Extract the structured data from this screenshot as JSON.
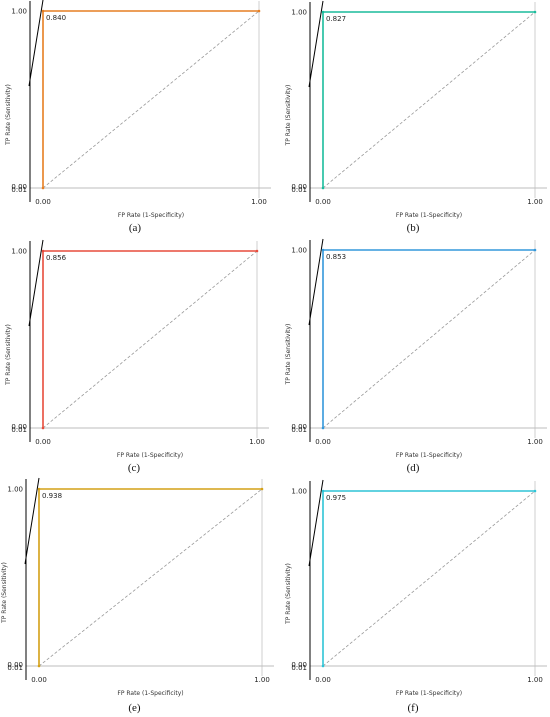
{
  "axis_labels": {
    "x": "FP Rate (1-Specificity)",
    "y": "TP Rate (Sensitivity)"
  },
  "tick_labels": {
    "x_min": "0.00",
    "x_max": "1.00",
    "y_max": "1.00",
    "y_min_a": "0.00",
    "y_min_b": "0.01"
  },
  "chart_data": [
    {
      "type": "line",
      "caption": "(a)",
      "auc_label": "0.840",
      "color": "#e67e22",
      "points": [
        [
          0,
          0
        ],
        [
          0,
          1
        ],
        [
          1,
          1
        ]
      ],
      "diagonal": [
        [
          0,
          0
        ],
        [
          1,
          1
        ]
      ],
      "xlabel": "FP Rate (1-Specificity)",
      "ylabel": "TP Rate (Sensitivity)",
      "xlim": [
        0,
        1
      ],
      "ylim": [
        0,
        1
      ]
    },
    {
      "type": "line",
      "caption": "(b)",
      "auc_label": "0.827",
      "color": "#1abc9c",
      "points": [
        [
          0,
          0
        ],
        [
          0,
          1
        ],
        [
          1,
          1
        ]
      ],
      "diagonal": [
        [
          0,
          0
        ],
        [
          1,
          1
        ]
      ],
      "xlabel": "FP Rate (1-Specificity)",
      "ylabel": "TP Rate (Sensitivity)",
      "xlim": [
        0,
        1
      ],
      "ylim": [
        0,
        1
      ]
    },
    {
      "type": "line",
      "caption": "(c)",
      "auc_label": "0.856",
      "color": "#e74c3c",
      "points": [
        [
          0,
          0
        ],
        [
          0,
          1
        ],
        [
          1,
          1
        ]
      ],
      "diagonal": [
        [
          0,
          0
        ],
        [
          1,
          1
        ]
      ],
      "xlabel": "FP Rate (1-Specificity)",
      "ylabel": "TP Rate (Sensitivity)",
      "xlim": [
        0,
        1
      ],
      "ylim": [
        0,
        1
      ]
    },
    {
      "type": "line",
      "caption": "(d)",
      "auc_label": "0.853",
      "color": "#3498db",
      "points": [
        [
          0,
          0
        ],
        [
          0,
          1
        ],
        [
          1,
          1
        ]
      ],
      "diagonal": [
        [
          0,
          0
        ],
        [
          1,
          1
        ]
      ],
      "xlabel": "FP Rate (1-Specificity)",
      "ylabel": "TP Rate (Sensitivity)",
      "xlim": [
        0,
        1
      ],
      "ylim": [
        0,
        1
      ]
    },
    {
      "type": "line",
      "caption": "(e)",
      "auc_label": "0.938",
      "color": "#d4a017",
      "points": [
        [
          0,
          0
        ],
        [
          0,
          1
        ],
        [
          1,
          1
        ]
      ],
      "diagonal": [
        [
          0,
          0
        ],
        [
          1,
          1
        ]
      ],
      "xlabel": "FP Rate (1-Specificity)",
      "ylabel": "TP Rate (Sensitivity)",
      "xlim": [
        0,
        1
      ],
      "ylim": [
        0,
        1
      ]
    },
    {
      "type": "line",
      "caption": "(f)",
      "auc_label": "0.975",
      "color": "#2ec4d6",
      "points": [
        [
          0,
          0
        ],
        [
          0,
          1
        ],
        [
          1,
          1
        ]
      ],
      "diagonal": [
        [
          0,
          0
        ],
        [
          1,
          1
        ]
      ],
      "xlabel": "FP Rate (1-Specificity)",
      "ylabel": "TP Rate (Sensitivity)",
      "xlim": [
        0,
        1
      ],
      "ylim": [
        0,
        1
      ]
    }
  ]
}
